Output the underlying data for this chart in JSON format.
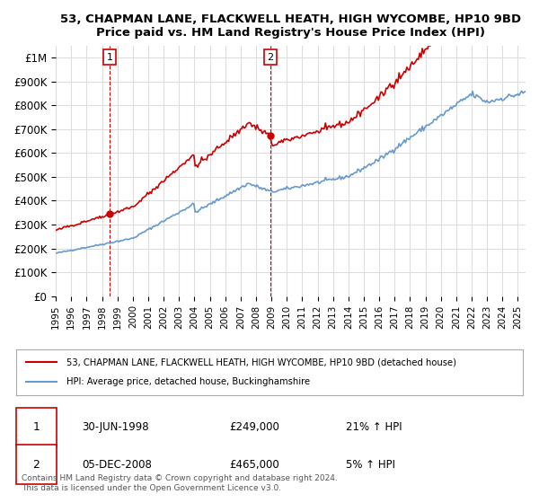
{
  "title": "53, CHAPMAN LANE, FLACKWELL HEATH, HIGH WYCOMBE, HP10 9BD",
  "subtitle": "Price paid vs. HM Land Registry's House Price Index (HPI)",
  "ylabel": "",
  "xlim_start": 1995.0,
  "xlim_end": 2025.5,
  "ylim": [
    0,
    1050000
  ],
  "yticks": [
    0,
    100000,
    200000,
    300000,
    400000,
    500000,
    600000,
    700000,
    800000,
    900000,
    1000000
  ],
  "ytick_labels": [
    "£0",
    "£100K",
    "£200K",
    "£300K",
    "£400K",
    "£500K",
    "£600K",
    "£700K",
    "£800K",
    "£900K",
    "£1M"
  ],
  "sale1_x": 1998.5,
  "sale1_y": 249000,
  "sale1_label": "1",
  "sale1_date": "30-JUN-1998",
  "sale1_price": "£249,000",
  "sale1_hpi": "21% ↑ HPI",
  "sale2_x": 2008.92,
  "sale2_y": 465000,
  "sale2_label": "2",
  "sale2_date": "05-DEC-2008",
  "sale2_price": "£465,000",
  "sale2_hpi": "5% ↑ HPI",
  "legend_line1": "53, CHAPMAN LANE, FLACKWELL HEATH, HIGH WYCOMBE, HP10 9BD (detached house)",
  "legend_line2": "HPI: Average price, detached house, Buckinghamshire",
  "footer1": "Contains HM Land Registry data © Crown copyright and database right 2024.",
  "footer2": "This data is licensed under the Open Government Licence v3.0.",
  "line_color_red": "#cc0000",
  "line_color_blue": "#6699cc",
  "bg_color": "#ffffff",
  "grid_color": "#dddddd"
}
